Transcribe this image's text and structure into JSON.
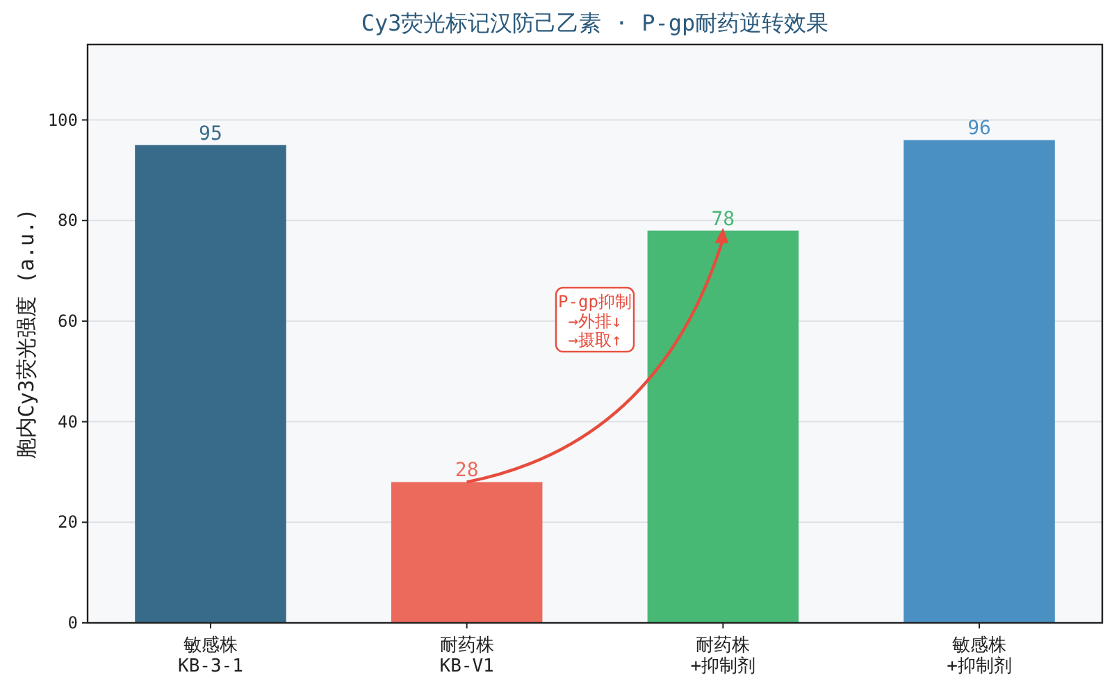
{
  "chart_data": {
    "type": "bar",
    "title": "Cy3荧光标记汉防己乙素 · P-gp耐药逆转效果",
    "ylabel": "胞内Cy3荧光强度 (a.u.)",
    "categories": [
      "敏感株\nKB-3-1",
      "耐药株\nKB-V1",
      "耐药株\n+抑制剂",
      "敏感株\n+抑制剂"
    ],
    "values": [
      95,
      28,
      78,
      96
    ],
    "colors": [
      "#386a8a",
      "#ec6a5c",
      "#48b975",
      "#4a90c2"
    ],
    "ylim": [
      0,
      115
    ],
    "yticks": [
      0,
      20,
      40,
      60,
      80,
      100
    ],
    "grid": "y",
    "data_labels": true,
    "annotations": [
      "P-gp抑制\n→外排↓\n→摄取↑"
    ]
  }
}
